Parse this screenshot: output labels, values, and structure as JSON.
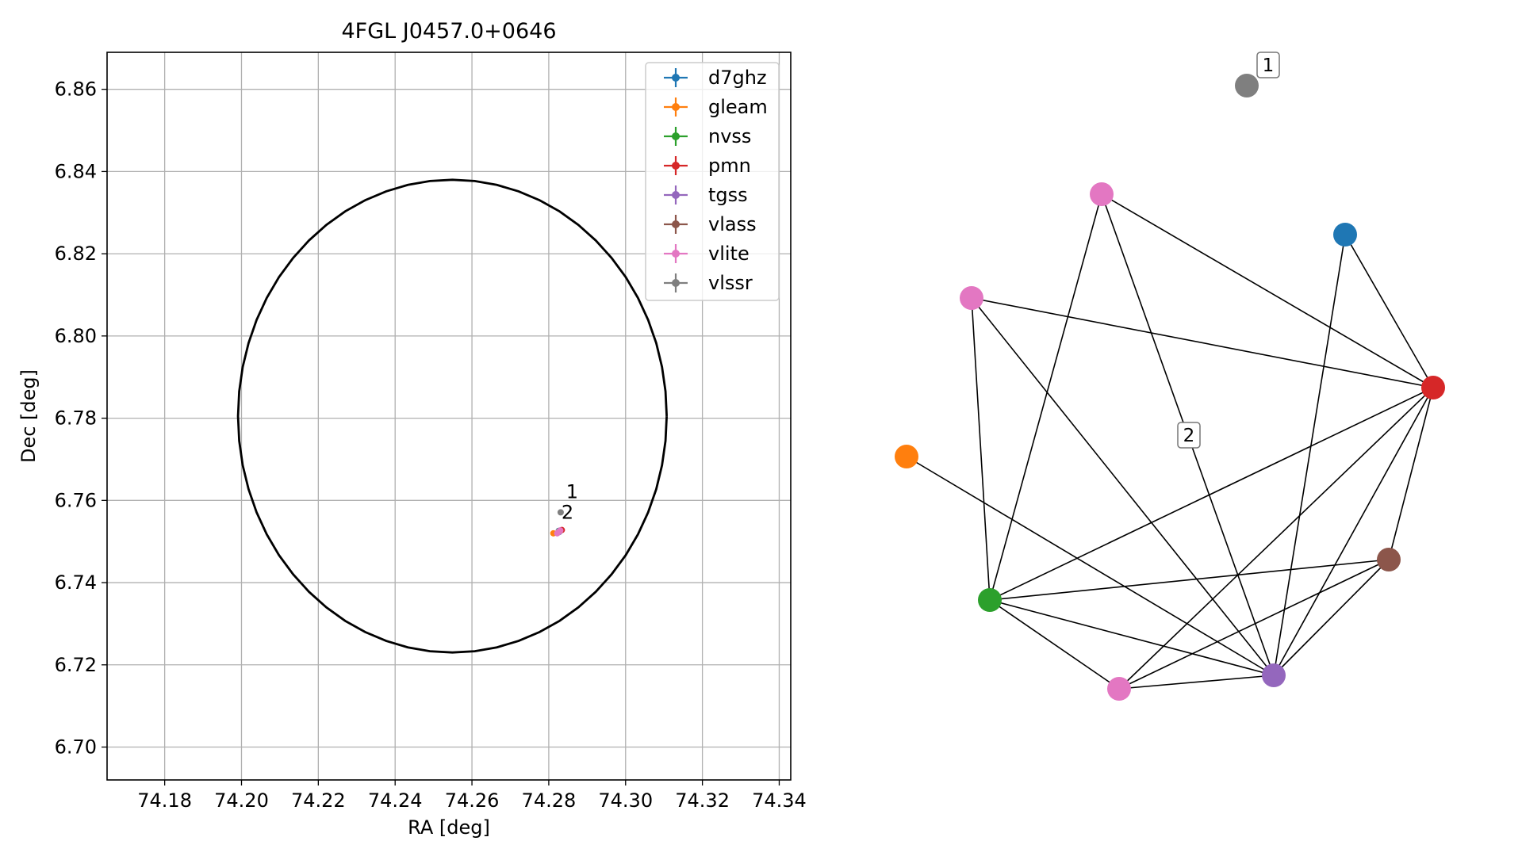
{
  "chart_data": [
    {
      "type": "scatter",
      "title": "4FGL J0457.0+0646",
      "xlabel": "RA [deg]",
      "ylabel": "Dec [deg]",
      "xlim": [
        74.165,
        74.343
      ],
      "ylim": [
        6.692,
        6.869
      ],
      "grid": true,
      "legend_position": "top-right",
      "xticks": [
        "74.18",
        "74.20",
        "74.22",
        "74.24",
        "74.26",
        "74.28",
        "74.30",
        "74.32",
        "74.34"
      ],
      "yticks": [
        "6.70",
        "6.72",
        "6.74",
        "6.76",
        "6.78",
        "6.80",
        "6.82",
        "6.84",
        "6.86"
      ],
      "ellipse": {
        "center": [
          74.2549,
          6.7805
        ],
        "ra_semi_axis": 0.0558,
        "dec_semi_axis": 0.0575,
        "color": "#000000"
      },
      "series": [
        {
          "name": "d7ghz",
          "color": "#1f77b4",
          "points": [
            [
              74.2826,
              6.7526
            ]
          ]
        },
        {
          "name": "gleam",
          "color": "#ff7f0e",
          "points": [
            [
              74.2812,
              6.752
            ]
          ]
        },
        {
          "name": "nvss",
          "color": "#2ca02c",
          "points": [
            [
              74.2826,
              6.7525
            ]
          ]
        },
        {
          "name": "pmn",
          "color": "#d62728",
          "points": [
            [
              74.2834,
              6.7528
            ]
          ]
        },
        {
          "name": "tgss",
          "color": "#9467bd",
          "points": [
            [
              74.2827,
              6.7523
            ]
          ]
        },
        {
          "name": "vlass",
          "color": "#8c564b",
          "points": [
            [
              74.2828,
              6.7525
            ]
          ]
        },
        {
          "name": "vlite",
          "color": "#e377c2",
          "points": [
            [
              74.2822,
              6.752
            ],
            [
              74.2826,
              6.7524
            ],
            [
              74.283,
              6.7527
            ]
          ]
        },
        {
          "name": "vlssr",
          "color": "#7f7f7f",
          "points": [
            [
              74.2831,
              6.7571
            ]
          ]
        }
      ],
      "annotations": [
        {
          "text": "1",
          "x": 74.2845,
          "y": 6.7605
        },
        {
          "text": "2",
          "x": 74.2833,
          "y": 6.7555
        }
      ]
    },
    {
      "type": "network",
      "nodes": [
        {
          "id": "vlssr",
          "color": "#7f7f7f"
        },
        {
          "id": "vlite_a",
          "color": "#e377c2"
        },
        {
          "id": "d7ghz",
          "color": "#1f77b4"
        },
        {
          "id": "vlite_b",
          "color": "#e377c2"
        },
        {
          "id": "pmn",
          "color": "#d62728"
        },
        {
          "id": "gleam",
          "color": "#ff7f0e"
        },
        {
          "id": "vlass",
          "color": "#8c564b"
        },
        {
          "id": "nvss",
          "color": "#2ca02c"
        },
        {
          "id": "tgss",
          "color": "#9467bd"
        },
        {
          "id": "vlite_c",
          "color": "#e377c2"
        }
      ],
      "edges": [
        [
          "vlite_a",
          "pmn"
        ],
        [
          "vlite_a",
          "nvss"
        ],
        [
          "vlite_a",
          "tgss"
        ],
        [
          "d7ghz",
          "pmn"
        ],
        [
          "d7ghz",
          "tgss"
        ],
        [
          "vlite_b",
          "pmn"
        ],
        [
          "vlite_b",
          "nvss"
        ],
        [
          "vlite_b",
          "tgss"
        ],
        [
          "pmn",
          "nvss"
        ],
        [
          "pmn",
          "vlite_c"
        ],
        [
          "pmn",
          "tgss"
        ],
        [
          "pmn",
          "vlass"
        ],
        [
          "gleam",
          "tgss"
        ],
        [
          "vlass",
          "nvss"
        ],
        [
          "vlass",
          "vlite_c"
        ],
        [
          "vlass",
          "tgss"
        ],
        [
          "nvss",
          "vlite_c"
        ],
        [
          "nvss",
          "tgss"
        ],
        [
          "tgss",
          "vlite_c"
        ]
      ],
      "cluster_labels": [
        {
          "text": "1"
        },
        {
          "text": "2"
        }
      ]
    }
  ]
}
